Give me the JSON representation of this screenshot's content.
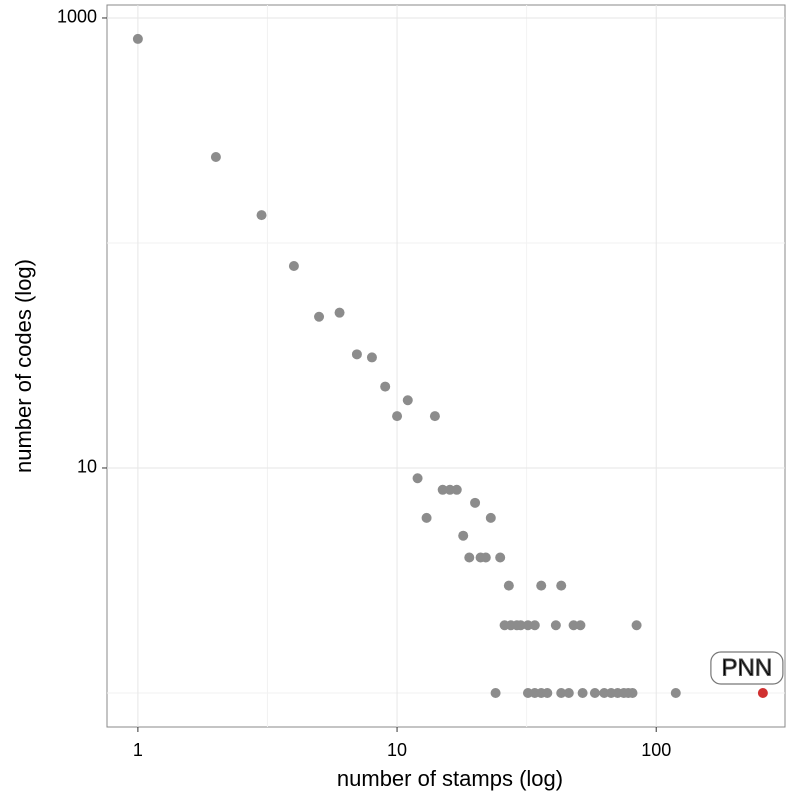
{
  "chart_data": {
    "type": "scatter",
    "x_label": "number of stamps (log)",
    "y_label": "number of codes (log)",
    "xscale": "log",
    "yscale": "log",
    "xlim": [
      0.76,
      314
    ],
    "ylim": [
      0.706,
      1142
    ],
    "xticks": [
      1,
      10,
      100
    ],
    "yticks": [
      10,
      1000
    ],
    "minor_xticks": [
      3.162,
      31.62
    ],
    "minor_yticks": [
      1,
      100
    ],
    "grid": true,
    "annotation": "PNN",
    "series": [
      {
        "color": "#8c8c8c",
        "x": [
          1,
          2,
          3,
          4,
          5,
          6,
          7,
          8,
          9,
          10,
          11,
          14,
          12,
          13,
          15,
          16,
          17,
          18,
          20,
          19,
          21,
          22,
          23,
          25,
          27,
          26,
          27.5,
          29,
          30,
          32,
          34,
          36,
          41,
          43,
          48,
          51,
          84,
          24,
          32,
          34,
          36,
          38,
          43,
          46,
          52,
          58,
          63,
          67,
          71,
          75,
          78,
          81,
          119
        ],
        "values": [
          807,
          241,
          133,
          79,
          47,
          49,
          32,
          31,
          23,
          17,
          20,
          17,
          9,
          6,
          8,
          8,
          8,
          5,
          7,
          4,
          4,
          4,
          6,
          4,
          3,
          2,
          2,
          2,
          2,
          2,
          2,
          3,
          2,
          3,
          2,
          2,
          2,
          1,
          1,
          1,
          1,
          1,
          1,
          1,
          1,
          1,
          1,
          1,
          1,
          1,
          1,
          1,
          1
        ]
      },
      {
        "color": "#d03030",
        "x": [
          258
        ],
        "values": [
          1
        ]
      }
    ]
  }
}
